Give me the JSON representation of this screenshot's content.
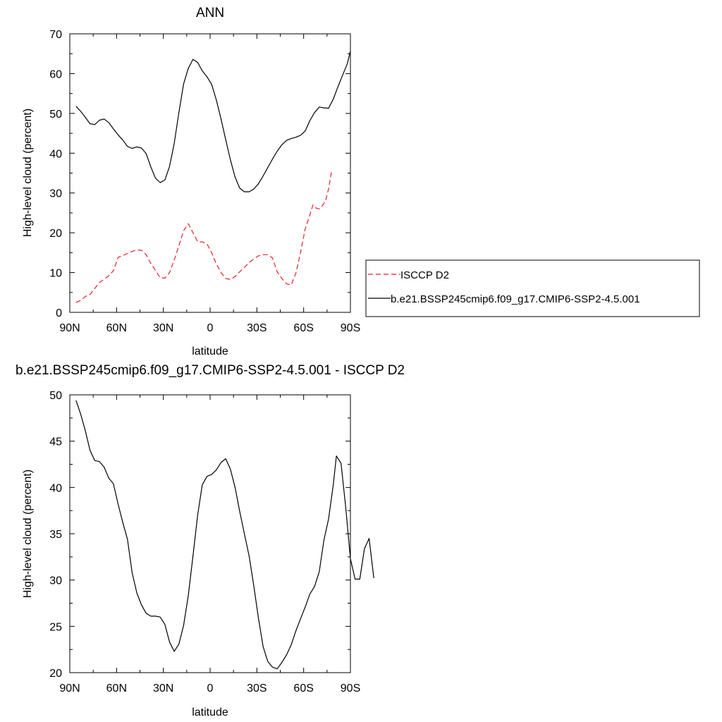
{
  "chart_data": [
    {
      "type": "line",
      "title": "ANN",
      "xlabel": "latitude",
      "ylabel": "High-level cloud (percent)",
      "xlim": [
        -90,
        90
      ],
      "ylim": [
        0,
        70
      ],
      "x_ticks": [
        {
          "value": -90,
          "label": "90N"
        },
        {
          "value": -60,
          "label": "60N"
        },
        {
          "value": -30,
          "label": "30N"
        },
        {
          "value": 0,
          "label": "0"
        },
        {
          "value": 30,
          "label": "30S"
        },
        {
          "value": 60,
          "label": "60S"
        },
        {
          "value": 90,
          "label": "90S"
        }
      ],
      "y_ticks": [
        0,
        10,
        20,
        30,
        40,
        50,
        60,
        70
      ],
      "legend_position": "right",
      "series": [
        {
          "name": "ISCCP D2",
          "color": "#e8202a",
          "dash": "dashed",
          "points": [
            [
              -86,
              2.5
            ],
            [
              -83,
              3
            ],
            [
              -80,
              4
            ],
            [
              -77,
              4.5
            ],
            [
              -74,
              6
            ],
            [
              -71,
              7.5
            ],
            [
              -68,
              8.3
            ],
            [
              -65,
              9.2
            ],
            [
              -62,
              10.5
            ],
            [
              -59,
              13.8
            ],
            [
              -56,
              14.3
            ],
            [
              -53,
              14.8
            ],
            [
              -50,
              15.3
            ],
            [
              -47,
              15.7
            ],
            [
              -44,
              15.6
            ],
            [
              -41,
              14.5
            ],
            [
              -38,
              12.3
            ],
            [
              -35,
              10.5
            ],
            [
              -32,
              8.7
            ],
            [
              -29,
              8.6
            ],
            [
              -26,
              10
            ],
            [
              -23,
              13.2
            ],
            [
              -20,
              16.8
            ],
            [
              -17,
              20.5
            ],
            [
              -14,
              22.3
            ],
            [
              -11,
              20
            ],
            [
              -8,
              17.8
            ],
            [
              -5,
              17.7
            ],
            [
              -2,
              17.2
            ],
            [
              1,
              15
            ],
            [
              4,
              12.2
            ],
            [
              7,
              10
            ],
            [
              10,
              8.5
            ],
            [
              13,
              8.3
            ],
            [
              16,
              9
            ],
            [
              19,
              10.2
            ],
            [
              22,
              11.3
            ],
            [
              25,
              12.5
            ],
            [
              28,
              13.4
            ],
            [
              31,
              14.2
            ],
            [
              34,
              14.5
            ],
            [
              37,
              14.5
            ],
            [
              40,
              13.7
            ],
            [
              43,
              10.2
            ],
            [
              46,
              8.5
            ],
            [
              49,
              7.2
            ],
            [
              52,
              6.9
            ],
            [
              55,
              9.8
            ],
            [
              58,
              15
            ],
            [
              61,
              21
            ],
            [
              64,
              24.5
            ],
            [
              66,
              27
            ],
            [
              68,
              26.2
            ],
            [
              70,
              26
            ],
            [
              72,
              26.8
            ],
            [
              74,
              28
            ],
            [
              76,
              31
            ],
            [
              78,
              35.7
            ]
          ]
        },
        {
          "name": "b.e21.BSSP245cmip6.f09_g17.CMIP6-SSP2-4.5.001",
          "color": "#000000",
          "dash": "solid",
          "points": [
            [
              -86,
              51.8
            ],
            [
              -83,
              50.5
            ],
            [
              -80,
              49
            ],
            [
              -77,
              47.4
            ],
            [
              -74,
              47.2
            ],
            [
              -71,
              48.3
            ],
            [
              -68,
              48.6
            ],
            [
              -65,
              47.7
            ],
            [
              -62,
              46.1
            ],
            [
              -59,
              44.6
            ],
            [
              -56,
              43.3
            ],
            [
              -53,
              41.7
            ],
            [
              -50,
              41.2
            ],
            [
              -47,
              41.6
            ],
            [
              -44,
              41.3
            ],
            [
              -41,
              39.9
            ],
            [
              -38,
              36.5
            ],
            [
              -35,
              33.7
            ],
            [
              -32,
              32.6
            ],
            [
              -29,
              33.3
            ],
            [
              -26,
              36.7
            ],
            [
              -23,
              42.5
            ],
            [
              -20,
              50.3
            ],
            [
              -17,
              57.4
            ],
            [
              -14,
              61.3
            ],
            [
              -11,
              63.6
            ],
            [
              -8,
              62.8
            ],
            [
              -5,
              60.7
            ],
            [
              -2,
              59.2
            ],
            [
              1,
              57.3
            ],
            [
              4,
              53.4
            ],
            [
              7,
              48.6
            ],
            [
              10,
              43.4
            ],
            [
              13,
              38.4
            ],
            [
              16,
              34
            ],
            [
              19,
              31.2
            ],
            [
              22,
              30.3
            ],
            [
              25,
              30.3
            ],
            [
              28,
              31
            ],
            [
              31,
              32.3
            ],
            [
              34,
              34.3
            ],
            [
              37,
              36.4
            ],
            [
              40,
              38.5
            ],
            [
              43,
              40.5
            ],
            [
              46,
              42.1
            ],
            [
              49,
              43.2
            ],
            [
              52,
              43.7
            ],
            [
              55,
              44
            ],
            [
              58,
              44.5
            ],
            [
              61,
              45.6
            ],
            [
              64,
              48.2
            ],
            [
              67,
              50.2
            ],
            [
              70,
              51.6
            ],
            [
              73,
              51.4
            ],
            [
              76,
              51.3
            ],
            [
              79,
              53.6
            ],
            [
              82,
              56.7
            ],
            [
              85,
              59.6
            ],
            [
              88,
              62.5
            ],
            [
              90,
              65.7
            ]
          ]
        }
      ]
    },
    {
      "type": "line",
      "title": "b.e21.BSSP245cmip6.f09_g17.CMIP6-SSP2-4.5.001 - ISCCP D2",
      "xlabel": "latitude",
      "ylabel": "High-level cloud (percent)",
      "xlim": [
        -90,
        90
      ],
      "ylim": [
        20,
        50
      ],
      "x_ticks": [
        {
          "value": -90,
          "label": "90N"
        },
        {
          "value": -60,
          "label": "60N"
        },
        {
          "value": -30,
          "label": "30N"
        },
        {
          "value": 0,
          "label": "0"
        },
        {
          "value": 30,
          "label": "30S"
        },
        {
          "value": 60,
          "label": "60S"
        },
        {
          "value": 90,
          "label": "90S"
        }
      ],
      "y_ticks": [
        20,
        25,
        30,
        35,
        40,
        45,
        50
      ],
      "series": [
        {
          "color": "#000000",
          "dash": "solid",
          "points": [
            [
              -86,
              49.4
            ],
            [
              -83,
              47.9
            ],
            [
              -80,
              46.1
            ],
            [
              -77,
              44
            ],
            [
              -74,
              42.9
            ],
            [
              -71,
              42.8
            ],
            [
              -68,
              42.2
            ],
            [
              -65,
              41
            ],
            [
              -62,
              40.4
            ],
            [
              -59,
              38.2
            ],
            [
              -56,
              36.2
            ],
            [
              -53,
              34.4
            ],
            [
              -50,
              30.8
            ],
            [
              -47,
              28.6
            ],
            [
              -44,
              27.3
            ],
            [
              -41,
              26.4
            ],
            [
              -38,
              26.1
            ],
            [
              -35,
              26.1
            ],
            [
              -32,
              26
            ],
            [
              -29,
              25.2
            ],
            [
              -26,
              23.3
            ],
            [
              -23,
              22.3
            ],
            [
              -20,
              23.1
            ],
            [
              -17,
              25.1
            ],
            [
              -14,
              28.3
            ],
            [
              -11,
              32.6
            ],
            [
              -8,
              37
            ],
            [
              -5,
              40.3
            ],
            [
              -2,
              41.2
            ],
            [
              1,
              41.4
            ],
            [
              4,
              41.9
            ],
            [
              7,
              42.7
            ],
            [
              10,
              43.1
            ],
            [
              13,
              42
            ],
            [
              16,
              40
            ],
            [
              19,
              37.4
            ],
            [
              22,
              35
            ],
            [
              25,
              32.6
            ],
            [
              28,
              29.4
            ],
            [
              31,
              25.9
            ],
            [
              34,
              22.8
            ],
            [
              37,
              21.2
            ],
            [
              40,
              20.6
            ],
            [
              43,
              20.4
            ],
            [
              46,
              21.1
            ],
            [
              49,
              21.9
            ],
            [
              52,
              23
            ],
            [
              55,
              24.5
            ],
            [
              58,
              25.8
            ],
            [
              61,
              27.1
            ],
            [
              64,
              28.5
            ],
            [
              67,
              29.3
            ],
            [
              70,
              30.9
            ],
            [
              73,
              34.3
            ],
            [
              76,
              36.6
            ],
            [
              79,
              40.3
            ],
            [
              81,
              43.4
            ],
            [
              84,
              42.6
            ],
            [
              87,
              37.8
            ],
            [
              90,
              32.3
            ],
            [
              93,
              30.1
            ],
            [
              96,
              30.1
            ],
            [
              99,
              33.4
            ],
            [
              102,
              34.5
            ],
            [
              105,
              30.2
            ]
          ]
        }
      ]
    }
  ]
}
